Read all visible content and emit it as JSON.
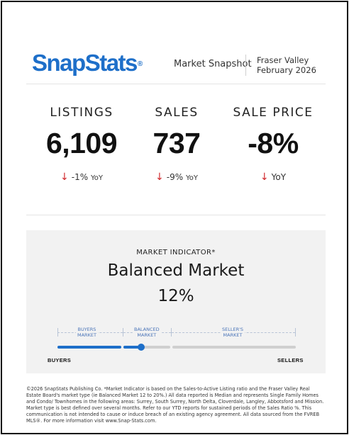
{
  "header": {
    "logo_snap": "Snap",
    "logo_stats": "Stats",
    "logo_reg": "®",
    "report_title": "Market Snapshot",
    "region": "Fraser Valley",
    "period": "February 2026"
  },
  "stats": {
    "listings": {
      "label": "LISTINGS",
      "value": "6,109",
      "arrow": "↓",
      "change": "-1%",
      "suffix": "YoY"
    },
    "sales": {
      "label": "SALES",
      "value": "737",
      "arrow": "↓",
      "change": "-9%",
      "suffix": "YoY"
    },
    "price": {
      "label": "SALE PRICE",
      "value": "-8%",
      "arrow": "↓",
      "change": "",
      "suffix": "YoY"
    }
  },
  "indicator": {
    "label": "MARKET INDICATOR*",
    "market_type": "Balanced Market",
    "ratio": "12%",
    "ratio_value": 12,
    "segments": {
      "buyers": "BUYERS\nMARKET",
      "balanced": "BALANCED\nMARKET",
      "sellers": "SELLER'S\nMARKET"
    },
    "left_end": "BUYERS",
    "right_end": "SELLERS",
    "colors": {
      "active": "#1e6fc9",
      "inactive": "#cfcfcf"
    }
  },
  "footer": {
    "disclaimer": "©2026 SnapStats Publishing Co. *Market Indicator is based on the Sales-to-Active Listing ratio and the Fraser Valley Real Estate Board's market type (ie Balanced Market 12 to 20%.) All data reported is Median and represents Single Family Homes and Condo/ Townhomes in the following areas: Surrey, South Surrey, North Delta, Cloverdale, Langley, Abbotsford and Mission. Market type is best defined over several months. Refer to our YTD reports for sustained periods of the Sales Ratio %. This communication is not intended to cause or induce breach of an existing agency agreement. All data sourced from the FVREB MLS®. For more information visit www.Snap-Stats.com."
  }
}
